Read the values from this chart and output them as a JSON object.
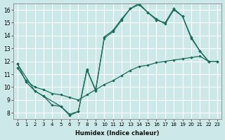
{
  "xlabel": "Humidex (Indice chaleur)",
  "bg_color": "#cce8e8",
  "grid_color": "#ffffff",
  "line_color": "#1a6b5a",
  "xlim": [
    -0.5,
    23.5
  ],
  "ylim": [
    7.5,
    16.5
  ],
  "xticks": [
    0,
    1,
    2,
    3,
    4,
    5,
    6,
    7,
    8,
    9,
    10,
    11,
    12,
    13,
    14,
    15,
    16,
    17,
    18,
    19,
    20,
    21,
    22,
    23
  ],
  "yticks": [
    8,
    9,
    10,
    11,
    12,
    13,
    14,
    15,
    16
  ],
  "line1_x": [
    0,
    1,
    2,
    3,
    4,
    5,
    6,
    7,
    8,
    9,
    10,
    11,
    12,
    13,
    14,
    15,
    16,
    17,
    18,
    19,
    20,
    21,
    22
  ],
  "line1_y": [
    11.8,
    10.4,
    9.7,
    9.3,
    8.6,
    8.5,
    7.8,
    8.1,
    11.4,
    9.7,
    13.9,
    14.4,
    15.3,
    16.1,
    16.5,
    15.8,
    15.3,
    14.9,
    16.0,
    15.5,
    13.8,
    12.8,
    12.0
  ],
  "line2_x": [
    0,
    1,
    2,
    3,
    4,
    5,
    6,
    7,
    8,
    9,
    10,
    11,
    12,
    13,
    14,
    15,
    16,
    17,
    18,
    19,
    20,
    21,
    22,
    23
  ],
  "line2_y": [
    11.5,
    10.5,
    10.0,
    9.8,
    9.5,
    9.4,
    9.2,
    9.0,
    9.4,
    9.8,
    10.2,
    10.5,
    10.9,
    11.3,
    11.6,
    11.7,
    11.9,
    12.0,
    12.1,
    12.2,
    12.3,
    12.4,
    12.0,
    12.0
  ],
  "line3_x": [
    0,
    2,
    3,
    5,
    6,
    7,
    8,
    9,
    10,
    11,
    12,
    13,
    14,
    15,
    16,
    17,
    18,
    19,
    20,
    21,
    22,
    23
  ],
  "line3_y": [
    11.8,
    9.7,
    9.3,
    8.5,
    7.9,
    8.1,
    11.3,
    9.8,
    13.8,
    14.3,
    15.2,
    16.1,
    16.4,
    15.8,
    15.2,
    15.0,
    16.1,
    15.5,
    13.9,
    12.8,
    12.0,
    12.0
  ]
}
